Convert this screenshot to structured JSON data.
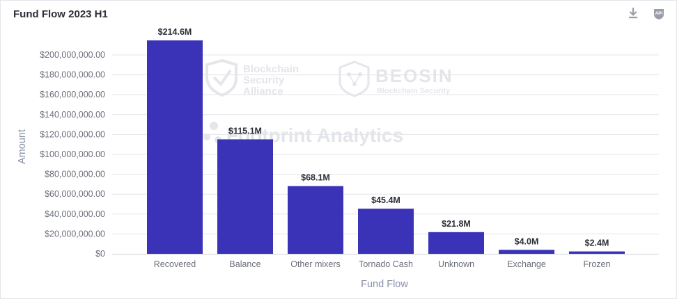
{
  "header": {
    "title": "Fund Flow 2023 H1",
    "download_icon": "download-icon",
    "api_icon": "api-icon",
    "api_badge": "API"
  },
  "watermarks": {
    "bsa_lines": [
      "Blockchain",
      "Security",
      "Alliance"
    ],
    "beosin_name": "BEOSIN",
    "beosin_tagline": "Blockchain Security",
    "footprint": "Footprint Analytics"
  },
  "colors": {
    "bar": "#3a33b8",
    "grid": "#e3e4ea",
    "axis": "#cfd1d8"
  },
  "chart_data": {
    "type": "bar",
    "title": "Fund Flow 2023 H1",
    "xlabel": "Fund Flow",
    "ylabel": "Amount",
    "categories": [
      "Recovered",
      "Balance",
      "Other mixers",
      "Tornado Cash",
      "Unknown",
      "Exchange",
      "Frozen"
    ],
    "values": [
      214600000,
      115100000,
      68100000,
      45400000,
      21800000,
      4000000,
      2400000
    ],
    "data_labels": [
      "$214.6M",
      "$115.1M",
      "$68.1M",
      "$45.4M",
      "$21.8M",
      "$4.0M",
      "$2.4M"
    ],
    "yticks": [
      0,
      20000000,
      40000000,
      60000000,
      80000000,
      100000000,
      120000000,
      140000000,
      160000000,
      180000000,
      200000000
    ],
    "ytick_labels": [
      "$0",
      "$20,000,000.00",
      "$40,000,000.00",
      "$60,000,000.00",
      "$80,000,000.00",
      "$100,000,000.00",
      "$120,000,000.00",
      "$140,000,000.00",
      "$160,000,000.00",
      "$180,000,000.00",
      "$200,000,000.00"
    ],
    "ylim": [
      0,
      220000000
    ],
    "grid": true,
    "legend": "none"
  }
}
